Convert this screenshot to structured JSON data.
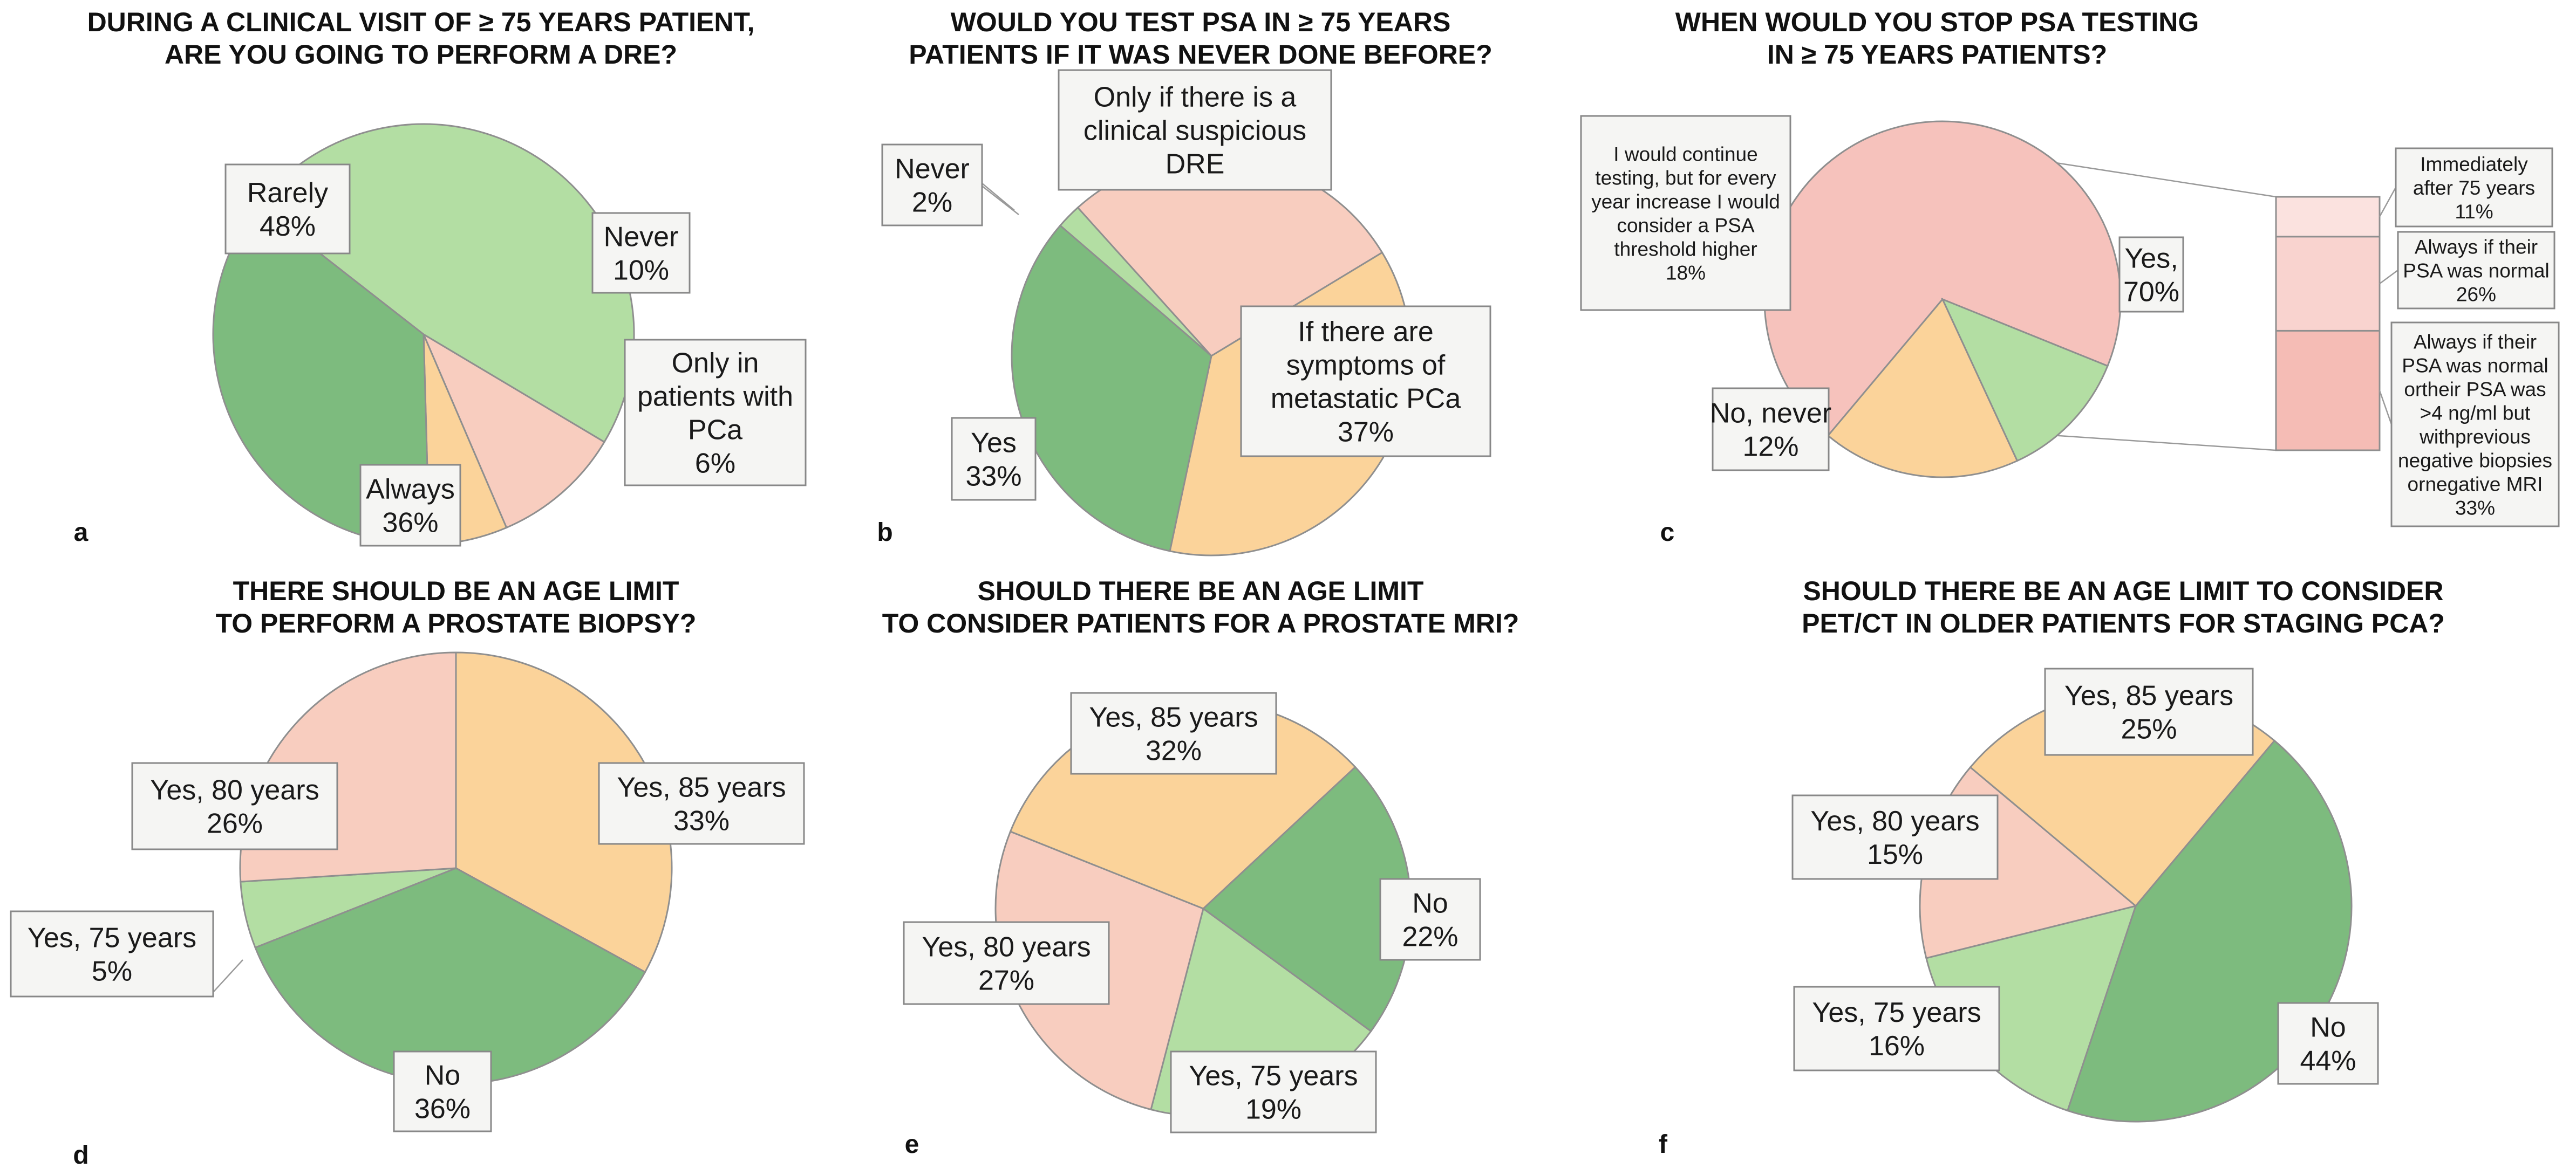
{
  "colors": {
    "dark_green": "#7dbb7e",
    "light_green": "#b3dea3",
    "salmon": "#f8cdbf",
    "orange": "#fbd39a",
    "pink": "#f6c2bc",
    "pink_light": "#fbe2df",
    "pink_mid": "#f9d3cf",
    "pink_dark": "#f5bcb5"
  },
  "chart_data": [
    {
      "type": "pie",
      "panel": "a",
      "title": [
        "DURING A CLINICAL VISIT OF ≥ 75 YEARS PATIENT,",
        "ARE YOU GOING TO PERFORM A DRE?"
      ],
      "slices": [
        {
          "label": [
            "Rarely",
            "48%"
          ],
          "value": 48,
          "color": "light_green"
        },
        {
          "label": [
            "Never",
            "10%"
          ],
          "value": 10,
          "color": "salmon"
        },
        {
          "label": [
            "Only in",
            "patients with",
            "PCa",
            "6%"
          ],
          "value": 6,
          "color": "orange"
        },
        {
          "label": [
            "Always",
            "36%"
          ],
          "value": 36,
          "color": "dark_green"
        }
      ]
    },
    {
      "type": "pie",
      "panel": "b",
      "title": [
        "WOULD YOU TEST PSA IN ≥ 75 YEARS",
        "PATIENTS IF IT WAS NEVER DONE BEFORE?"
      ],
      "slices": [
        {
          "label": [
            "Only if there is a",
            "clinical suspicious",
            "DRE"
          ],
          "value": 28,
          "color": "salmon"
        },
        {
          "label": [
            "If there are",
            "symptoms of",
            "metastatic PCa",
            "37%"
          ],
          "value": 37,
          "color": "orange"
        },
        {
          "label": [
            "Yes",
            "33%"
          ],
          "value": 33,
          "color": "dark_green"
        },
        {
          "label": [
            "Never",
            "2%"
          ],
          "value": 2,
          "color": "light_green"
        }
      ]
    },
    {
      "type": "pie-of-bar",
      "panel": "c",
      "title": [
        "WHEN WOULD YOU STOP PSA TESTING",
        "IN ≥ 75 YEARS PATIENTS?"
      ],
      "slices": [
        {
          "label": [
            "Yes,",
            "70%"
          ],
          "value": 70,
          "color": "pink"
        },
        {
          "label": [
            "No, never",
            "12%"
          ],
          "value": 12,
          "color": "light_green"
        },
        {
          "label": [
            "I would continue",
            "testing, but for every",
            "year increase I would",
            "consider a PSA",
            "threshold higher",
            "18%"
          ],
          "value": 18,
          "color": "orange"
        }
      ],
      "breakdown": [
        {
          "label": [
            "Immediately",
            "after 75 years",
            "11%"
          ],
          "value": 11,
          "color": "pink_light"
        },
        {
          "label": [
            "Always if their",
            "PSA was normal",
            "26%"
          ],
          "value": 26,
          "color": "pink_mid"
        },
        {
          "label": [
            "Always if their",
            "PSA was normal",
            "ortheir PSA was",
            ">4 ng/ml but",
            "withprevious",
            "negative biopsies",
            "ornegative MRI",
            "33%"
          ],
          "value": 33,
          "color": "pink_dark"
        }
      ]
    },
    {
      "type": "pie",
      "panel": "d",
      "title": [
        "THERE SHOULD BE AN AGE LIMIT",
        "TO PERFORM A PROSTATE BIOPSY?"
      ],
      "slices": [
        {
          "label": [
            "Yes, 85 years",
            "33%"
          ],
          "value": 33,
          "color": "orange"
        },
        {
          "label": [
            "No",
            "36%"
          ],
          "value": 36,
          "color": "dark_green"
        },
        {
          "label": [
            "Yes, 75 years",
            "5%"
          ],
          "value": 5,
          "color": "light_green"
        },
        {
          "label": [
            "Yes, 80 years",
            "26%"
          ],
          "value": 26,
          "color": "salmon"
        }
      ]
    },
    {
      "type": "pie",
      "panel": "e",
      "title": [
        "SHOULD THERE BE AN AGE LIMIT",
        "TO CONSIDER PATIENTS FOR A PROSTATE MRI?"
      ],
      "slices": [
        {
          "label": [
            "No",
            "22%"
          ],
          "value": 22,
          "color": "dark_green"
        },
        {
          "label": [
            "Yes, 75 years",
            "19%"
          ],
          "value": 19,
          "color": "light_green"
        },
        {
          "label": [
            "Yes, 80 years",
            "27%"
          ],
          "value": 27,
          "color": "salmon"
        },
        {
          "label": [
            "Yes, 85 years",
            "32%"
          ],
          "value": 32,
          "color": "orange"
        }
      ]
    },
    {
      "type": "pie",
      "panel": "f",
      "title": [
        "SHOULD THERE BE AN AGE LIMIT TO CONSIDER",
        "PET/CT IN OLDER PATIENTS FOR STAGING PCA?"
      ],
      "slices": [
        {
          "label": [
            "No",
            "44%"
          ],
          "value": 44,
          "color": "dark_green"
        },
        {
          "label": [
            "Yes, 75 years",
            "16%"
          ],
          "value": 16,
          "color": "light_green"
        },
        {
          "label": [
            "Yes, 80 years",
            "15%"
          ],
          "value": 15,
          "color": "salmon"
        },
        {
          "label": [
            "Yes, 85 years",
            "25%"
          ],
          "value": 25,
          "color": "orange"
        }
      ]
    }
  ]
}
